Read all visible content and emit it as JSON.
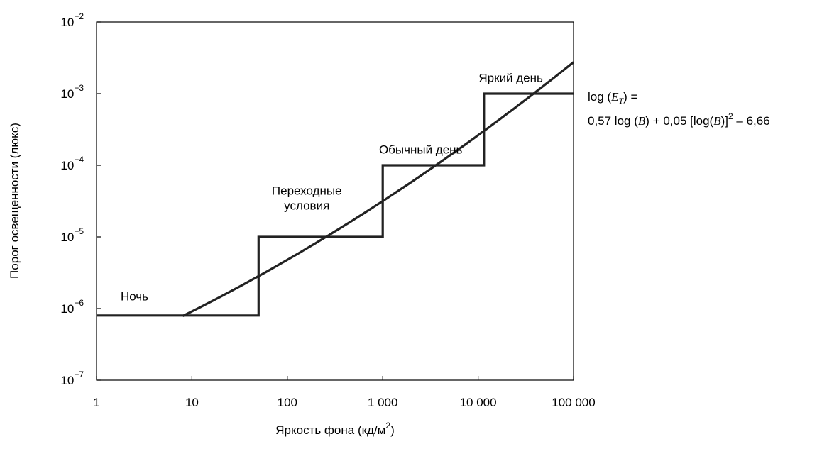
{
  "chart_data": {
    "type": "line",
    "xscale": "log",
    "yscale": "log",
    "xlim": [
      1,
      100000
    ],
    "ylim": [
      1e-07,
      0.01
    ],
    "grid": false,
    "xlabel": "Яркость фона (кд/м",
    "xlabel_sup": "2",
    "xlabel_close": ")",
    "ylabel": "Порог освещенности (люкс)",
    "x_ticks": [
      {
        "value": 1,
        "label": "1"
      },
      {
        "value": 10,
        "label": "10"
      },
      {
        "value": 100,
        "label": "100"
      },
      {
        "value": 1000,
        "label": "1 000"
      },
      {
        "value": 10000,
        "label": "10 000"
      },
      {
        "value": 100000,
        "label": "100 000"
      }
    ],
    "y_ticks": [
      {
        "value": 0.01,
        "base": "10",
        "exp": "−2"
      },
      {
        "value": 0.001,
        "base": "10",
        "exp": "−3"
      },
      {
        "value": 0.0001,
        "base": "10",
        "exp": "−4"
      },
      {
        "value": 1e-05,
        "base": "10",
        "exp": "−5"
      },
      {
        "value": 1e-06,
        "base": "10",
        "exp": "−6"
      },
      {
        "value": 1e-07,
        "base": "10",
        "exp": "−7"
      }
    ],
    "step_series": {
      "points": [
        {
          "x": 1,
          "y": 8e-07
        },
        {
          "x": 50,
          "y": 8e-07
        },
        {
          "x": 50,
          "y": 1e-05
        },
        {
          "x": 1000,
          "y": 1e-05
        },
        {
          "x": 1000,
          "y": 0.0001
        },
        {
          "x": 11500,
          "y": 0.0001
        },
        {
          "x": 11500,
          "y": 0.001
        },
        {
          "x": 100000,
          "y": 0.001
        }
      ]
    },
    "curve_series": {
      "formula": {
        "a": 0.57,
        "b": 0.05,
        "c": -6.66
      },
      "x_start": 8,
      "x_end": 100000
    },
    "annotations": [
      {
        "id": "night",
        "lines": [
          "Ночь"
        ],
        "x": 2.5,
        "y": 1.3e-06,
        "anchor": "middle"
      },
      {
        "id": "transition",
        "lines": [
          "Переходные",
          "условия"
        ],
        "x": 160,
        "y": 2.4e-05,
        "anchor": "middle"
      },
      {
        "id": "normal-day",
        "lines": [
          "Обычный день"
        ],
        "x": 2500,
        "y": 0.000145,
        "anchor": "middle"
      },
      {
        "id": "bright-day",
        "lines": [
          "Яркий день"
        ],
        "x": 22000,
        "y": 0.00145,
        "anchor": "middle"
      }
    ],
    "formula_text": {
      "line1_prefix": "log (",
      "line1_var": "E",
      "line1_sub": "T",
      "line1_suffix": ") =",
      "line2_a": "0,57 log (",
      "line2_var1": "B",
      "line2_b": ") + 0,05 [log(",
      "line2_var2": "B",
      "line2_c": ")]",
      "line2_sup": "2",
      "line2_d": " – 6,66"
    }
  }
}
